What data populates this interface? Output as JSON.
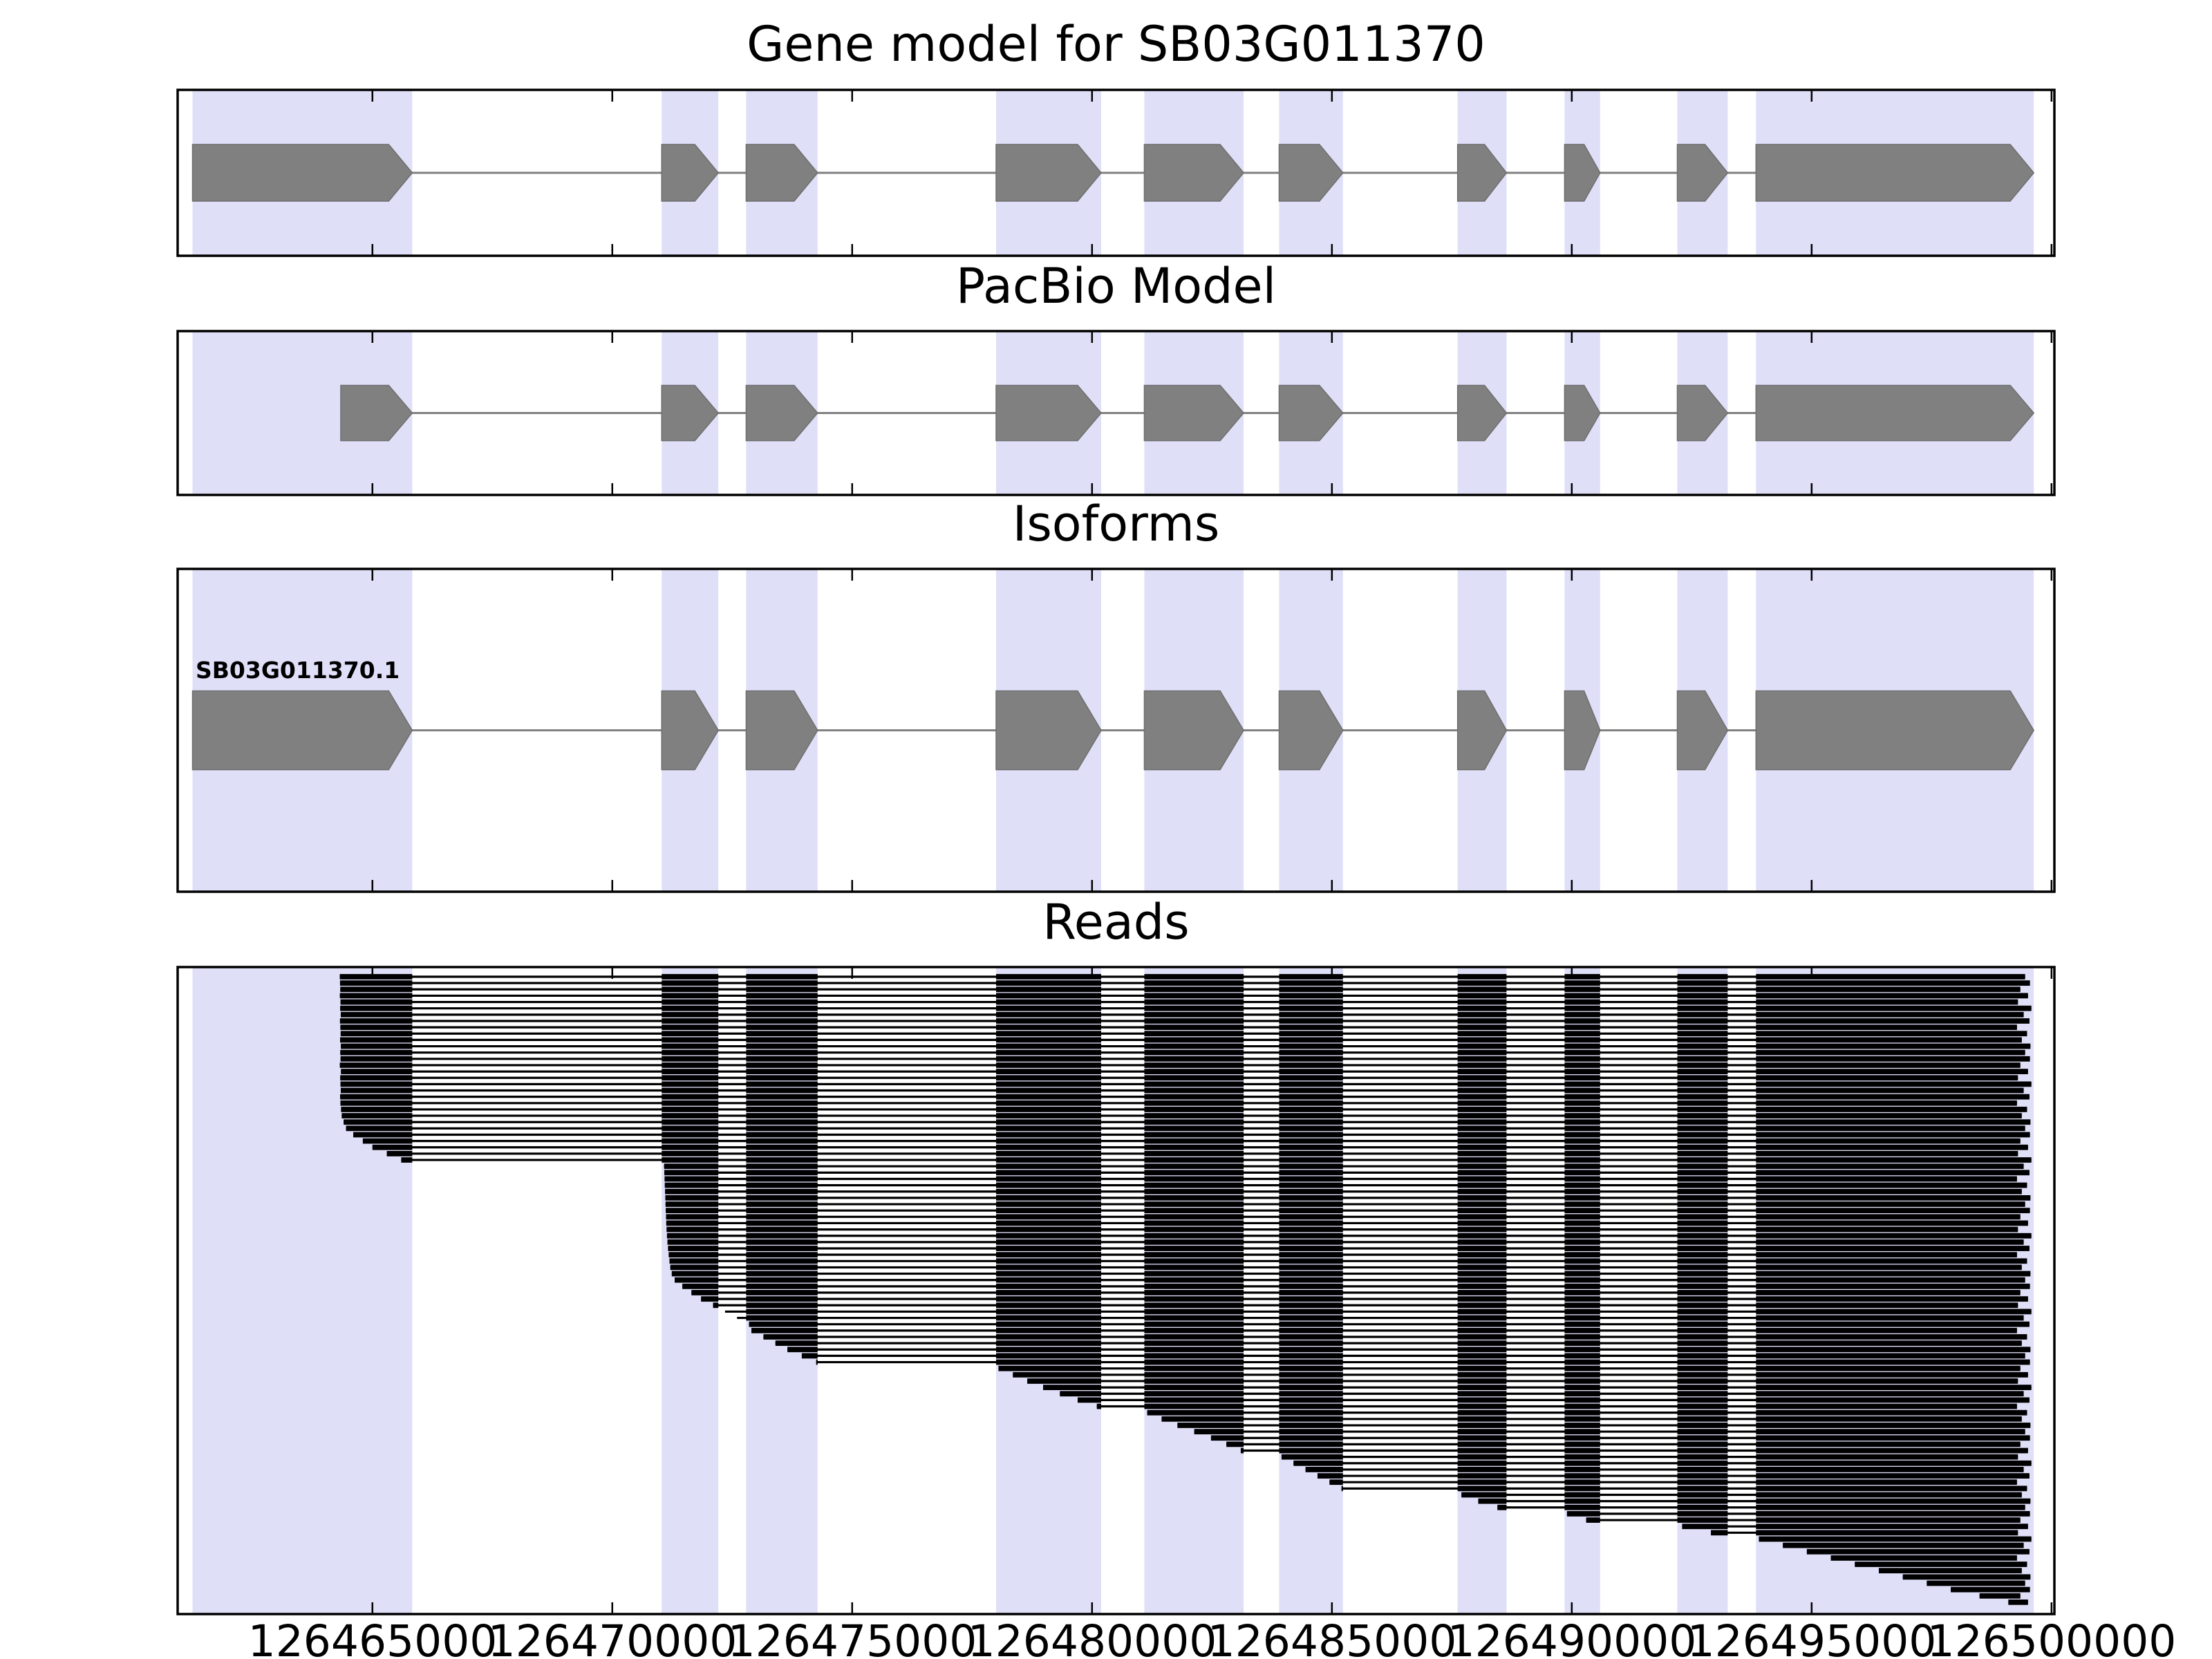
{
  "chart_data": {
    "type": "genomic-track-figure",
    "x_axis": {
      "domain_start": 126460940,
      "domain_end": 126500060,
      "tick_values": [
        126465000,
        126470000,
        126475000,
        126480000,
        126485000,
        126490000,
        126495000,
        126500000
      ],
      "tick_labels": [
        "126465000",
        "126470000",
        "126475000",
        "126480000",
        "126485000",
        "126490000",
        "126495000",
        "126500000"
      ]
    },
    "highlight_regions": [
      [
        126461250,
        126465830
      ],
      [
        126471030,
        126472210
      ],
      [
        126472790,
        126474280
      ],
      [
        126478000,
        126480190
      ],
      [
        126481090,
        126483160
      ],
      [
        126483900,
        126485230
      ],
      [
        126487620,
        126488640
      ],
      [
        126489850,
        126490590
      ],
      [
        126492200,
        126493250
      ],
      [
        126493840,
        126499630
      ]
    ],
    "panels": [
      {
        "id": "gene_model",
        "title": "Gene model for SB03G011370",
        "track_type": "model",
        "strand": "+",
        "exons": [
          [
            126461250,
            126465830
          ],
          [
            126471030,
            126472210
          ],
          [
            126472790,
            126474280
          ],
          [
            126478000,
            126480190
          ],
          [
            126481090,
            126483160
          ],
          [
            126483900,
            126485230
          ],
          [
            126487620,
            126488640
          ],
          [
            126489850,
            126490590
          ],
          [
            126492200,
            126493250
          ],
          [
            126493840,
            126499630
          ]
        ]
      },
      {
        "id": "pacbio_model",
        "title": "PacBio Model",
        "track_type": "model",
        "strand": "+",
        "exons": [
          [
            126464340,
            126465830
          ],
          [
            126471030,
            126472210
          ],
          [
            126472790,
            126474280
          ],
          [
            126478000,
            126480190
          ],
          [
            126481090,
            126483160
          ],
          [
            126483900,
            126485230
          ],
          [
            126487620,
            126488640
          ],
          [
            126489850,
            126490590
          ],
          [
            126492200,
            126493250
          ],
          [
            126493840,
            126499630
          ]
        ]
      },
      {
        "id": "isoforms",
        "title": "Isoforms",
        "track_type": "model",
        "strand": "+",
        "isoform_label": "SB03G011370.1",
        "exons": [
          [
            126461250,
            126465830
          ],
          [
            126471030,
            126472210
          ],
          [
            126472790,
            126474280
          ],
          [
            126478000,
            126480190
          ],
          [
            126481090,
            126483160
          ],
          [
            126483900,
            126485230
          ],
          [
            126487620,
            126488640
          ],
          [
            126489850,
            126490590
          ],
          [
            126492200,
            126493250
          ],
          [
            126493840,
            126499630
          ]
        ]
      },
      {
        "id": "reads",
        "title": "Reads",
        "track_type": "reads",
        "reads": [
          [
            126464320,
            126499450
          ],
          [
            126464325,
            126499550
          ],
          [
            126464330,
            126499350
          ],
          [
            126464322,
            126499510
          ],
          [
            126464335,
            126499300
          ],
          [
            126464328,
            126499580
          ],
          [
            126464340,
            126499420
          ],
          [
            126464324,
            126499540
          ],
          [
            126464332,
            126499280
          ],
          [
            126464338,
            126499490
          ],
          [
            126464326,
            126499380
          ],
          [
            126464342,
            126499560
          ],
          [
            126464330,
            126499450
          ],
          [
            126464336,
            126499550
          ],
          [
            126464321,
            126499350
          ],
          [
            126464344,
            126499510
          ],
          [
            126464329,
            126499300
          ],
          [
            126464334,
            126499580
          ],
          [
            126464340,
            126499420
          ],
          [
            126464327,
            126499540
          ],
          [
            126464333,
            126499280
          ],
          [
            126464346,
            126499490
          ],
          [
            126464360,
            126499380
          ],
          [
            126464400,
            126499560
          ],
          [
            126464450,
            126499450
          ],
          [
            126464600,
            126499550
          ],
          [
            126464800,
            126499350
          ],
          [
            126465000,
            126499510
          ],
          [
            126465300,
            126499300
          ],
          [
            126465600,
            126499580
          ],
          [
            126471080,
            126499420
          ],
          [
            126471085,
            126499540
          ],
          [
            126471090,
            126499280
          ],
          [
            126471095,
            126499490
          ],
          [
            126471100,
            126499380
          ],
          [
            126471105,
            126499560
          ],
          [
            126471110,
            126499450
          ],
          [
            126471115,
            126499550
          ],
          [
            126471120,
            126499350
          ],
          [
            126471125,
            126499510
          ],
          [
            126471132,
            126499300
          ],
          [
            126471140,
            126499580
          ],
          [
            126471150,
            126499420
          ],
          [
            126471162,
            126499540
          ],
          [
            126471176,
            126499280
          ],
          [
            126471192,
            126499490
          ],
          [
            126471210,
            126499380
          ],
          [
            126471240,
            126499560
          ],
          [
            126471300,
            126499450
          ],
          [
            126471460,
            126499550
          ],
          [
            126471650,
            126499350
          ],
          [
            126471850,
            126499510
          ],
          [
            126472100,
            126499300
          ],
          [
            126472350,
            126499580
          ],
          [
            126472600,
            126499420
          ],
          [
            126472850,
            126499540
          ],
          [
            126472900,
            126499280
          ],
          [
            126473150,
            126499490
          ],
          [
            126473400,
            126499380
          ],
          [
            126473650,
            126499560
          ],
          [
            126473950,
            126499450
          ],
          [
            126474250,
            126499550
          ],
          [
            126478050,
            126499350
          ],
          [
            126478350,
            126499510
          ],
          [
            126478650,
            126499300
          ],
          [
            126478980,
            126499580
          ],
          [
            126479330,
            126499420
          ],
          [
            126479700,
            126499540
          ],
          [
            126480100,
            126499280
          ],
          [
            126481150,
            126499490
          ],
          [
            126481450,
            126499380
          ],
          [
            126481780,
            126499560
          ],
          [
            126482130,
            126499450
          ],
          [
            126482480,
            126499550
          ],
          [
            126482800,
            126499350
          ],
          [
            126483100,
            126499510
          ],
          [
            126483950,
            126499300
          ],
          [
            126484200,
            126499580
          ],
          [
            126484450,
            126499420
          ],
          [
            126484700,
            126499540
          ],
          [
            126484950,
            126499280
          ],
          [
            126485200,
            126499490
          ],
          [
            126487700,
            126499380
          ],
          [
            126488050,
            126499560
          ],
          [
            126488450,
            126499450
          ],
          [
            126489900,
            126499550
          ],
          [
            126490300,
            126499350
          ],
          [
            126492300,
            126499510
          ],
          [
            126492900,
            126499300
          ],
          [
            126493900,
            126499580
          ],
          [
            126494400,
            126499420
          ],
          [
            126494900,
            126499540
          ],
          [
            126495400,
            126499280
          ],
          [
            126495900,
            126499490
          ],
          [
            126496400,
            126499380
          ],
          [
            126496900,
            126499560
          ],
          [
            126497400,
            126499450
          ],
          [
            126497900,
            126499550
          ],
          [
            126498500,
            126499350
          ],
          [
            126499100,
            126499510
          ]
        ]
      }
    ],
    "colors": {
      "background": "#ffffff",
      "highlight_band": "#dfdff8",
      "exon_fill": "#808080",
      "exon_edge": "#6e6e6e",
      "intron_line": "#808080",
      "read": "#000000",
      "panel_border": "#000000",
      "text": "#000000"
    }
  }
}
